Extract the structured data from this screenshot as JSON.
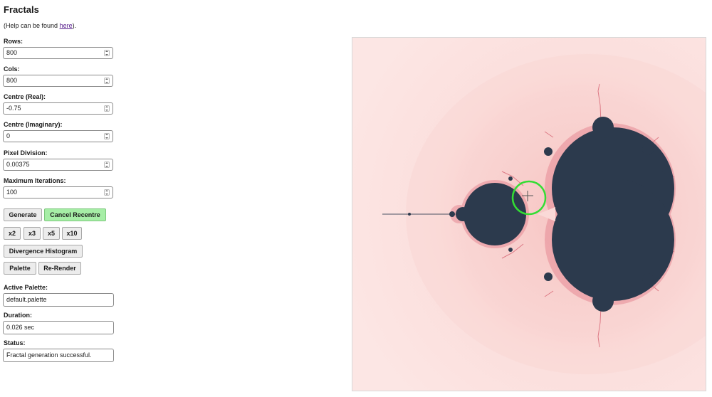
{
  "page": {
    "title": "Fractals",
    "help_prefix": "(Help can be found ",
    "help_link": "here",
    "help_suffix": ")."
  },
  "fields": {
    "rows": {
      "label": "Rows:",
      "value": "800"
    },
    "cols": {
      "label": "Cols:",
      "value": "800"
    },
    "centre_real": {
      "label": "Centre (Real):",
      "value": "-0.75"
    },
    "centre_imag": {
      "label": "Centre (Imaginary):",
      "value": "0"
    },
    "pixel_division": {
      "label": "Pixel Division:",
      "value": "0.00375"
    },
    "max_iterations": {
      "label": "Maximum Iterations:",
      "value": "100"
    }
  },
  "buttons": {
    "generate": "Generate",
    "cancel_recentre": "Cancel Recentre",
    "x2": "x2",
    "x3": "x3",
    "x5": "x5",
    "x10": "x10",
    "divergence_histogram": "Divergence Histogram",
    "palette": "Palette",
    "rerender": "Re-Render"
  },
  "info": {
    "active_palette": {
      "label": "Active Palette:",
      "value": "default.palette"
    },
    "duration": {
      "label": "Duration:",
      "value": "0.026 sec"
    },
    "status": {
      "label": "Status:",
      "value": "Fractal generation successful."
    }
  },
  "colors": {
    "set_interior": "#2c3a4d",
    "background_far": "#fce2e0",
    "background_mid": "#f8d0ce",
    "background_near": "#f2b3b2",
    "cursor_ring": "#33dd33",
    "button_highlight": "#a6eea6"
  },
  "icons": {
    "spinner": "spin-buttons-icon",
    "cursor": "crosshair-cursor-icon"
  }
}
